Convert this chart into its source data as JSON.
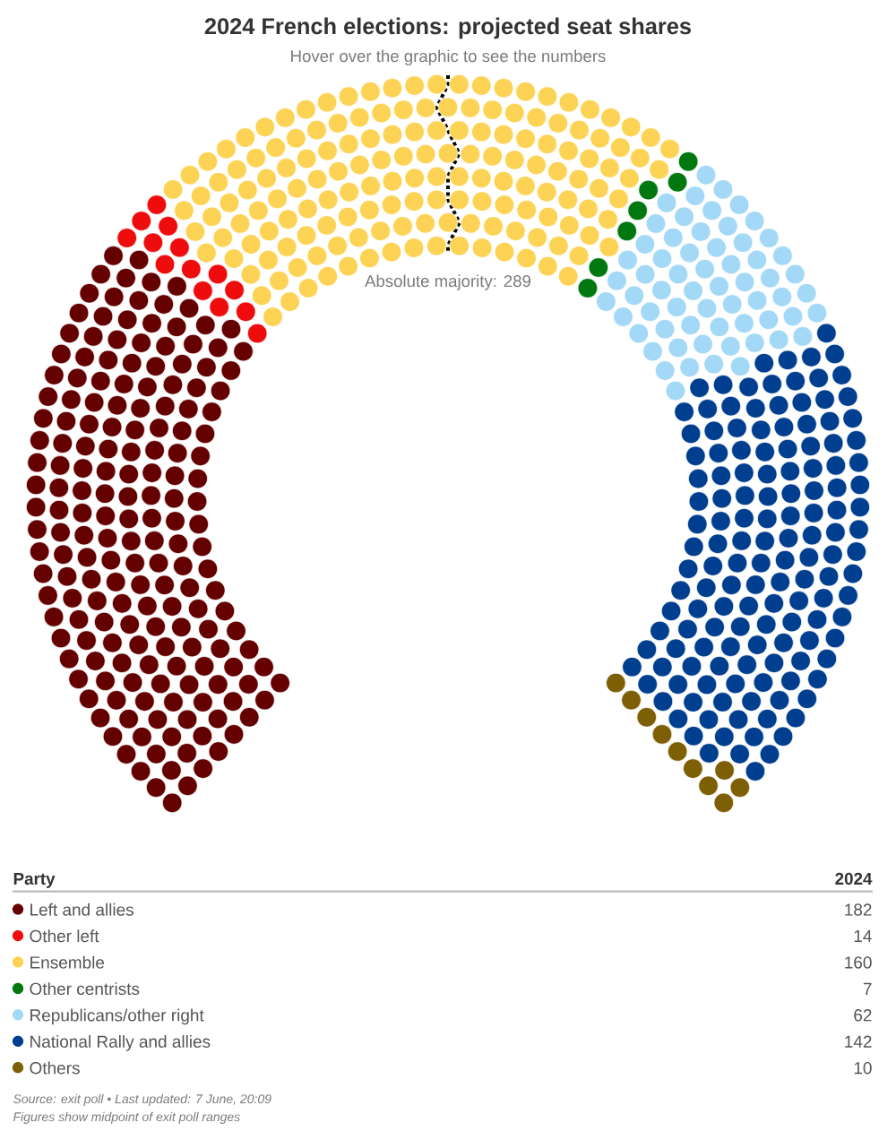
{
  "chart_data": {
    "type": "other",
    "title": "2024 French elections: projected seat shares",
    "subtitle": "Hover over the graphic to see the numbers",
    "legend_title": "Party",
    "categories": [
      "Left and allies",
      "Other left",
      "Ensemble",
      "Other centrists",
      "Republicans/other right",
      "National Rally and allies",
      "Others"
    ],
    "colors": [
      "#650000",
      "#ee0c0c",
      "#fdd355",
      "#00780f",
      "#a3d8f6",
      "#003f8f",
      "#7d6006"
    ],
    "series": [
      {
        "name": "2024",
        "values": [
          182,
          14,
          160,
          7,
          62,
          142,
          10
        ]
      }
    ],
    "data_labels": true,
    "annotations": [
      "Absolute majority: 289",
      "Source: exit poll • Last updated: 7 June, 20:09",
      "Figures show midpoint of exit poll ranges"
    ]
  }
}
